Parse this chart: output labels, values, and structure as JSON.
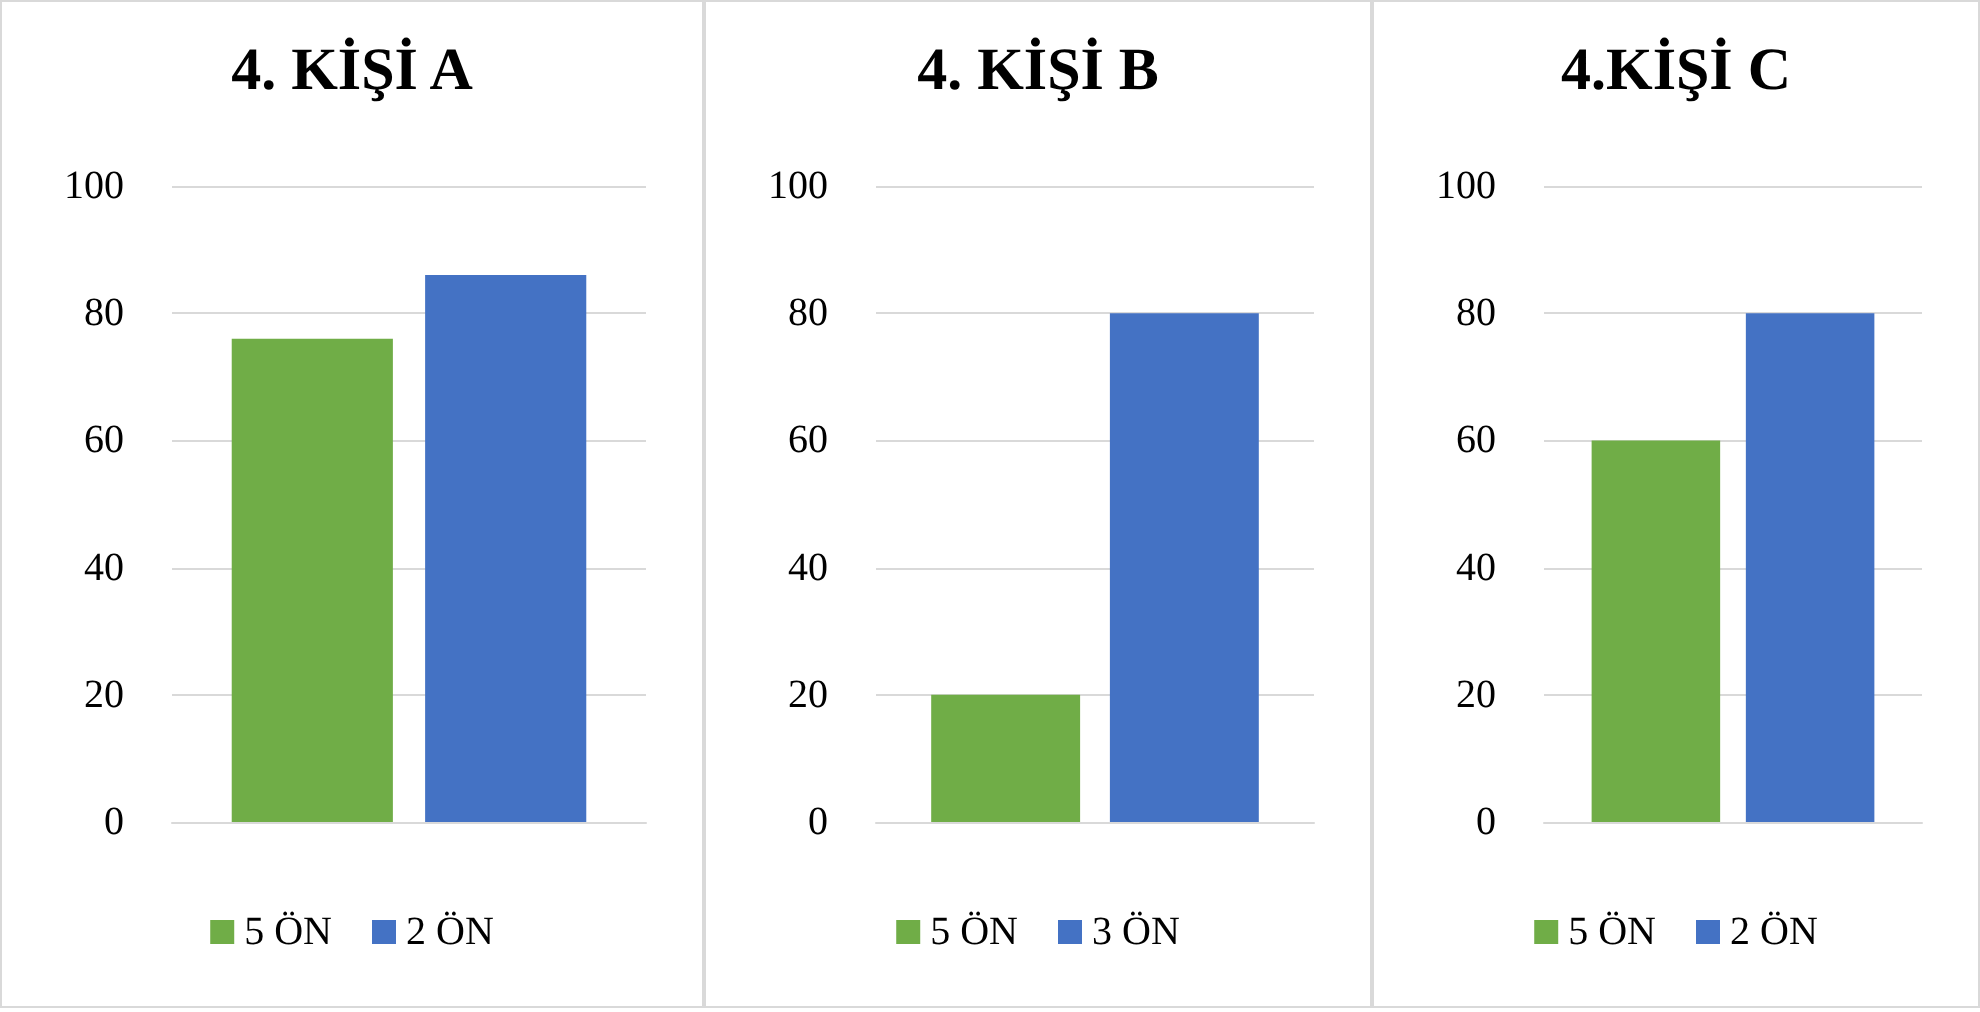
{
  "chart_data": [
    {
      "type": "bar",
      "title": "4. KİŞİ A",
      "categories": [
        null
      ],
      "series": [
        {
          "name": "5 ÖN",
          "color": "#70ad47",
          "values": [
            76
          ]
        },
        {
          "name": "2 ÖN",
          "color": "#4472c4",
          "values": [
            86
          ]
        }
      ],
      "ylim": [
        0,
        100
      ],
      "yticks": [
        0,
        20,
        40,
        60,
        80,
        100
      ],
      "grid": "y",
      "legend": "bottom"
    },
    {
      "type": "bar",
      "title": "4. KİŞİ B",
      "categories": [
        null
      ],
      "series": [
        {
          "name": "5 ÖN",
          "color": "#70ad47",
          "values": [
            20
          ]
        },
        {
          "name": "3 ÖN",
          "color": "#4472c4",
          "values": [
            80
          ]
        }
      ],
      "ylim": [
        0,
        100
      ],
      "yticks": [
        0,
        20,
        40,
        60,
        80,
        100
      ],
      "grid": "y",
      "legend": "bottom"
    },
    {
      "type": "bar",
      "title": "4.KİŞİ C",
      "categories": [
        null
      ],
      "series": [
        {
          "name": "5 ÖN",
          "color": "#70ad47",
          "values": [
            60
          ]
        },
        {
          "name": "2 ÖN",
          "color": "#4472c4",
          "values": [
            80
          ]
        }
      ],
      "ylim": [
        0,
        100
      ],
      "yticks": [
        0,
        20,
        40,
        60,
        80,
        100
      ],
      "grid": "y",
      "legend": "bottom"
    }
  ]
}
